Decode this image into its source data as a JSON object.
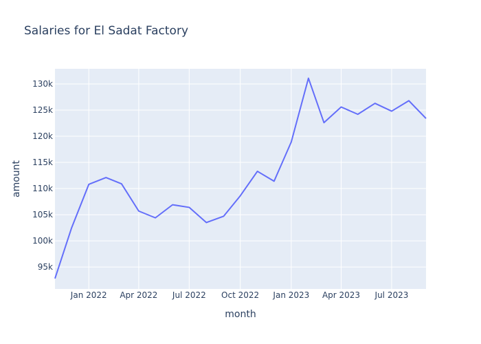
{
  "chart_data": {
    "type": "line",
    "title": "Salaries for El Sadat Factory",
    "xlabel": "month",
    "ylabel": "amount",
    "x": [
      "2021-11-01",
      "2021-12-01",
      "2022-01-01",
      "2022-02-01",
      "2022-03-01",
      "2022-04-01",
      "2022-05-01",
      "2022-06-01",
      "2022-07-01",
      "2022-08-01",
      "2022-09-01",
      "2022-10-01",
      "2022-11-01",
      "2022-12-01",
      "2023-01-01",
      "2023-02-01",
      "2023-03-01",
      "2023-04-01",
      "2023-05-01",
      "2023-06-01",
      "2023-07-01",
      "2023-08-01",
      "2023-09-01"
    ],
    "values": [
      92800,
      102500,
      110800,
      112100,
      110900,
      105700,
      104400,
      106900,
      106400,
      103500,
      104700,
      108600,
      113300,
      111400,
      118900,
      131100,
      122600,
      125600,
      124200,
      126300,
      124800,
      126800,
      123400
    ],
    "xlim": [
      "2021-11-01",
      "2023-09-01"
    ],
    "ylim": [
      90800,
      132900
    ],
    "xticks": [
      {
        "date": "2022-01-01",
        "label": "Jan 2022"
      },
      {
        "date": "2022-04-01",
        "label": "Apr 2022"
      },
      {
        "date": "2022-07-01",
        "label": "Jul 2022"
      },
      {
        "date": "2022-10-01",
        "label": "Oct 2022"
      },
      {
        "date": "2023-01-01",
        "label": "Jan 2023"
      },
      {
        "date": "2023-04-01",
        "label": "Apr 2023"
      },
      {
        "date": "2023-07-01",
        "label": "Jul 2023"
      }
    ],
    "yticks": [
      {
        "value": 95000,
        "label": "95k"
      },
      {
        "value": 100000,
        "label": "100k"
      },
      {
        "value": 105000,
        "label": "105k"
      },
      {
        "value": 110000,
        "label": "110k"
      },
      {
        "value": 115000,
        "label": "115k"
      },
      {
        "value": 120000,
        "label": "120k"
      },
      {
        "value": 125000,
        "label": "125k"
      },
      {
        "value": 130000,
        "label": "130k"
      }
    ],
    "grid": true,
    "colors": {
      "line": "#636efa",
      "plot_bg": "#e5ecf6",
      "grid": "#ffffff",
      "text": "#2a3f5f"
    }
  }
}
